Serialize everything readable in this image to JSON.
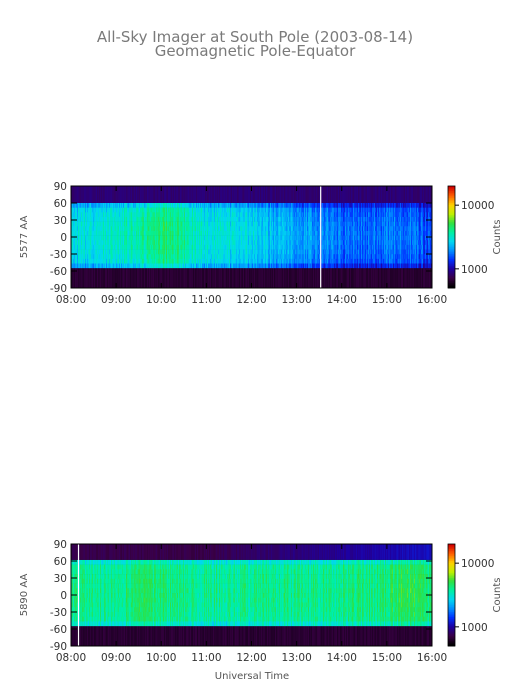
{
  "title_line1": "All-Sky Imager at South Pole (2003-08-14)",
  "title_line2": "Geomagnetic Pole-Equator",
  "x_axis_label": "Universal Time",
  "colorbar_label": "Counts",
  "colormap": [
    "#000000",
    "#3a0046",
    "#1e00a0",
    "#0030ff",
    "#0090ff",
    "#00d8f0",
    "#00f0a0",
    "#30e040",
    "#c0f000",
    "#ffd000",
    "#ff6000",
    "#d00000"
  ],
  "chart_data": [
    {
      "type": "heatmap",
      "panel_label": "5577 AA",
      "ylabel": "5577 AA",
      "xlabel": "",
      "x_tick_labels": [
        "08:00",
        "09:00",
        "10:00",
        "11:00",
        "12:00",
        "13:00",
        "14:00",
        "15:00",
        "16:00"
      ],
      "y_tick_labels": [
        "90",
        "60",
        "30",
        "0",
        "-30",
        "-60",
        "-90"
      ],
      "y_ticks": [
        90,
        60,
        30,
        0,
        -30,
        -60,
        -90
      ],
      "xlim": [
        "08:00",
        "16:00"
      ],
      "ylim": [
        -90,
        90
      ],
      "data_lat_range": [
        -55,
        60
      ],
      "colorbar": {
        "label": "Counts",
        "scale": "log",
        "tick_labels": [
          "10000",
          "1000"
        ],
        "range": [
          500,
          20000
        ]
      },
      "time_profile": [
        {
          "t": "08:00",
          "level": 0.42
        },
        {
          "t": "08:30",
          "level": 0.45
        },
        {
          "t": "09:00",
          "level": 0.46
        },
        {
          "t": "09:30",
          "level": 0.5
        },
        {
          "t": "10:00",
          "level": 0.56
        },
        {
          "t": "10:30",
          "level": 0.52
        },
        {
          "t": "11:00",
          "level": 0.45
        },
        {
          "t": "11:30",
          "level": 0.44
        },
        {
          "t": "12:00",
          "level": 0.42
        },
        {
          "t": "12:30",
          "level": 0.38
        },
        {
          "t": "13:00",
          "level": 0.36
        },
        {
          "t": "13:30",
          "level": 0.33
        },
        {
          "t": "14:00",
          "level": 0.3
        },
        {
          "t": "14:30",
          "level": 0.3
        },
        {
          "t": "15:00",
          "level": 0.3
        },
        {
          "t": "15:30",
          "level": 0.3
        },
        {
          "t": "16:00",
          "level": 0.26
        }
      ],
      "marker_times": [
        "13:32"
      ]
    },
    {
      "type": "heatmap",
      "panel_label": "5890 AA",
      "ylabel": "5890 AA",
      "xlabel": "Universal Time",
      "x_tick_labels": [
        "08:00",
        "09:00",
        "10:00",
        "11:00",
        "12:00",
        "13:00",
        "14:00",
        "15:00",
        "16:00"
      ],
      "y_tick_labels": [
        "90",
        "60",
        "30",
        "0",
        "-30",
        "-60",
        "-90"
      ],
      "y_ticks": [
        90,
        60,
        30,
        0,
        -30,
        -60,
        -90
      ],
      "xlim": [
        "08:00",
        "16:00"
      ],
      "ylim": [
        -90,
        90
      ],
      "data_lat_range": [
        -55,
        62
      ],
      "colorbar": {
        "label": "Counts",
        "scale": "log",
        "tick_labels": [
          "10000",
          "1000"
        ],
        "range": [
          500,
          20000
        ]
      },
      "time_profile": [
        {
          "t": "08:00",
          "level": 0.54
        },
        {
          "t": "08:30",
          "level": 0.55
        },
        {
          "t": "09:00",
          "level": 0.55
        },
        {
          "t": "09:30",
          "level": 0.58
        },
        {
          "t": "10:00",
          "level": 0.56
        },
        {
          "t": "10:30",
          "level": 0.55
        },
        {
          "t": "11:00",
          "level": 0.54
        },
        {
          "t": "11:30",
          "level": 0.54
        },
        {
          "t": "12:00",
          "level": 0.54
        },
        {
          "t": "12:30",
          "level": 0.54
        },
        {
          "t": "13:00",
          "level": 0.55
        },
        {
          "t": "13:30",
          "level": 0.55
        },
        {
          "t": "14:00",
          "level": 0.55
        },
        {
          "t": "14:30",
          "level": 0.56
        },
        {
          "t": "15:00",
          "level": 0.57
        },
        {
          "t": "15:30",
          "level": 0.6
        },
        {
          "t": "16:00",
          "level": 0.56
        }
      ],
      "marker_times": [
        "08:10"
      ]
    }
  ]
}
